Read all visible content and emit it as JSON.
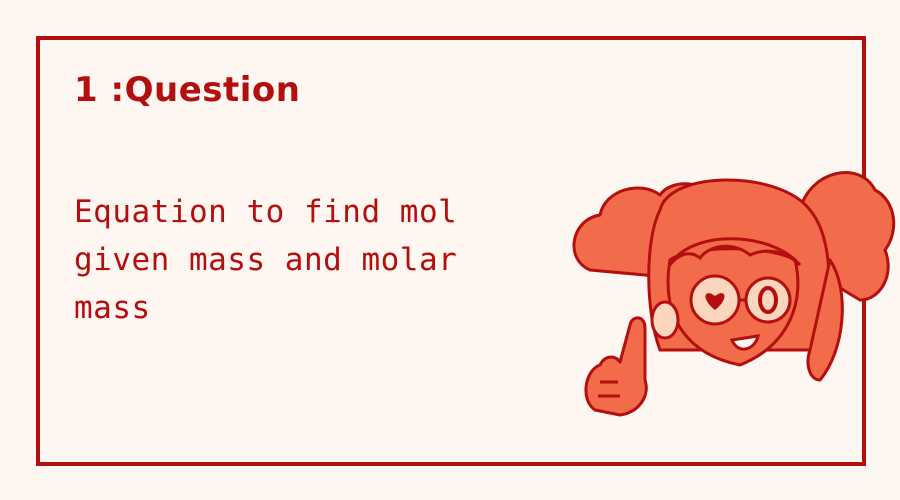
{
  "card": {
    "title": "1 :Question",
    "body": "Equation to find mol given mass and molar mass"
  },
  "colors": {
    "accent": "#b30f0f",
    "background": "#fdf6f1",
    "mascot_fill": "#f26b4a",
    "mascot_light": "#fbd6bf"
  }
}
